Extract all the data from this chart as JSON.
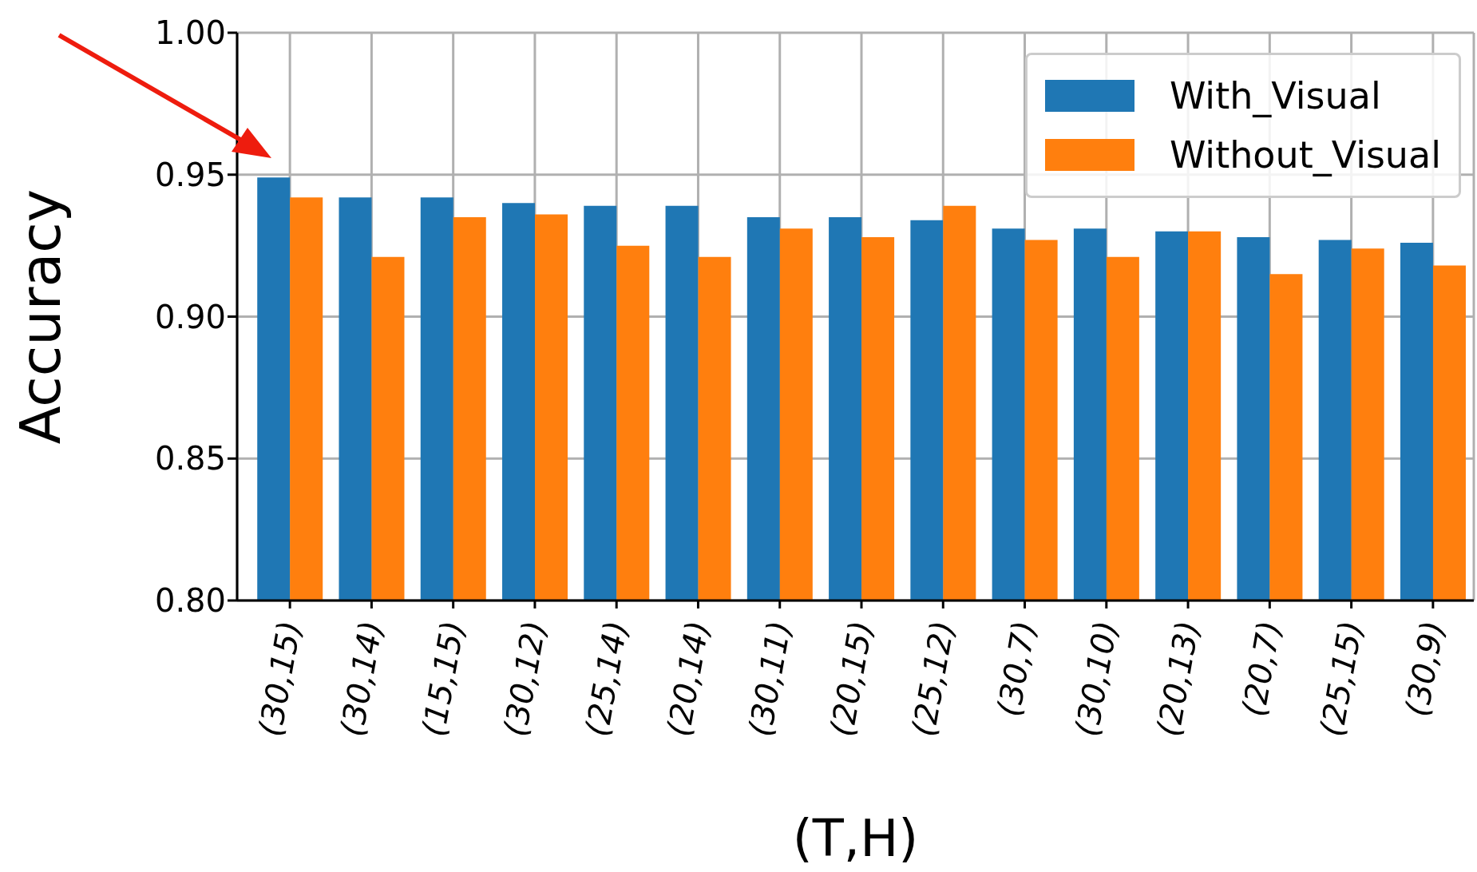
{
  "chart_data": {
    "type": "bar",
    "xlabel": "(T,H)",
    "ylabel": "Accuracy",
    "categories": [
      "(30,15)",
      "(30,14)",
      "(15,15)",
      "(30,12)",
      "(25,14)",
      "(20,14)",
      "(30,11)",
      "(20,15)",
      "(25,12)",
      "(30,7)",
      "(30,10)",
      "(20,13)",
      "(20,7)",
      "(25,15)",
      "(30,9)"
    ],
    "series": [
      {
        "name": "With_Visual",
        "color": "#1f77b4",
        "values": [
          0.949,
          0.942,
          0.942,
          0.94,
          0.939,
          0.939,
          0.935,
          0.935,
          0.934,
          0.931,
          0.931,
          0.93,
          0.928,
          0.927,
          0.926
        ]
      },
      {
        "name": "Without_Visual",
        "color": "#ff7f0e",
        "values": [
          0.942,
          0.921,
          0.935,
          0.936,
          0.925,
          0.921,
          0.931,
          0.928,
          0.939,
          0.927,
          0.921,
          0.93,
          0.915,
          0.924,
          0.918
        ]
      }
    ],
    "ylim": [
      0.8,
      1.0
    ],
    "yticks": [
      {
        "value": 0.8,
        "label": "0.80"
      },
      {
        "value": 0.85,
        "label": "0.85"
      },
      {
        "value": 0.9,
        "label": "0.90"
      },
      {
        "value": 0.95,
        "label": "0.95"
      },
      {
        "value": 1.0,
        "label": "1.00"
      }
    ],
    "grid": true,
    "legend": "top right"
  }
}
